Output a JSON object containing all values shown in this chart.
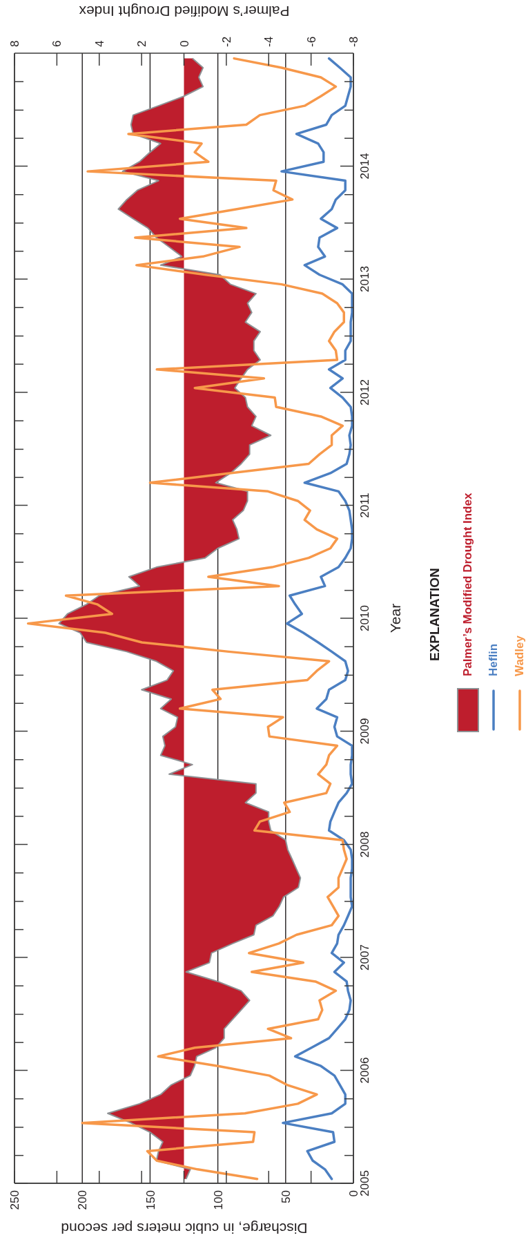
{
  "chart_data": {
    "type": "line",
    "orientation": "horizontal",
    "xlabel": "Discharge, in cubic meters per second",
    "x2label": "Palmer’s Modified Drought Index",
    "ylabel": "Year",
    "legend_title": "EXPLANATION",
    "legend": "right",
    "grid": "x",
    "x": [
      "2005-01-15",
      "2005-02-15",
      "2005-03-15",
      "2005-04-15",
      "2005-05-15",
      "2005-06-15",
      "2005-07-15",
      "2005-08-15",
      "2005-09-15",
      "2005-10-15",
      "2005-11-15",
      "2005-12-15",
      "2006-01-15",
      "2006-02-15",
      "2006-03-15",
      "2006-04-15",
      "2006-05-15",
      "2006-06-15",
      "2006-07-15",
      "2006-08-15",
      "2006-09-15",
      "2006-10-15",
      "2006-11-15",
      "2006-12-15",
      "2007-01-15",
      "2007-02-15",
      "2007-03-15",
      "2007-04-15",
      "2007-05-15",
      "2007-06-15",
      "2007-07-15",
      "2007-08-15",
      "2007-09-15",
      "2007-10-15",
      "2007-11-15",
      "2007-12-15",
      "2008-01-15",
      "2008-02-15",
      "2008-03-15",
      "2008-04-15",
      "2008-05-15",
      "2008-06-15",
      "2008-07-15",
      "2008-08-15",
      "2008-09-15",
      "2008-10-15",
      "2008-11-15",
      "2008-12-15",
      "2009-01-15",
      "2009-02-15",
      "2009-03-15",
      "2009-04-15",
      "2009-05-15",
      "2009-06-15",
      "2009-07-15",
      "2009-08-15",
      "2009-09-15",
      "2009-10-15",
      "2009-11-15",
      "2009-12-15",
      "2010-01-15",
      "2010-02-15",
      "2010-03-15",
      "2010-04-15",
      "2010-05-15",
      "2010-06-15",
      "2010-07-15",
      "2010-08-15",
      "2010-09-15",
      "2010-10-15",
      "2010-11-15",
      "2010-12-15",
      "2011-01-15",
      "2011-02-15",
      "2011-03-15",
      "2011-04-15",
      "2011-05-15",
      "2011-06-15",
      "2011-07-15",
      "2011-08-15",
      "2011-09-15",
      "2011-10-15",
      "2011-11-15",
      "2011-12-15",
      "2012-01-15",
      "2012-02-15",
      "2012-03-15",
      "2012-04-15",
      "2012-05-15",
      "2012-06-15",
      "2012-07-15",
      "2012-08-15",
      "2012-09-15",
      "2012-10-15",
      "2012-11-15",
      "2012-12-15",
      "2013-01-15",
      "2013-02-15",
      "2013-03-15",
      "2013-04-15",
      "2013-05-15",
      "2013-06-15",
      "2013-07-15",
      "2013-08-15",
      "2013-09-15",
      "2013-10-15",
      "2013-11-15",
      "2013-12-15",
      "2014-01-15",
      "2014-02-15",
      "2014-03-15",
      "2014-04-15",
      "2014-05-15",
      "2014-06-15",
      "2014-07-15",
      "2014-08-15",
      "2014-09-15",
      "2014-10-15",
      "2014-11-15",
      "2014-12-15"
    ],
    "xlim": [
      250,
      0
    ],
    "xticks": [
      250,
      200,
      150,
      100,
      50,
      0
    ],
    "x2lim": [
      8,
      -8
    ],
    "x2ticks": [
      8,
      6,
      4,
      2,
      0,
      -2,
      -4,
      -6,
      -8
    ],
    "ylim": [
      "2005",
      "2015"
    ],
    "yticks": [
      "2005",
      {
        "value": "2005-04",
        "label": null
      },
      {
        "value": "2005-07",
        "label": null
      },
      {
        "value": "2005-10",
        "label": null
      },
      "2006",
      {
        "value": "2006-04",
        "label": null
      },
      {
        "value": "2006-07",
        "label": null
      },
      {
        "value": "2006-10",
        "label": null
      },
      "2007",
      {
        "value": "2007-04",
        "label": null
      },
      {
        "value": "2007-07",
        "label": null
      },
      {
        "value": "2007-10",
        "label": null
      },
      "2008",
      {
        "value": "2008-04",
        "label": null
      },
      {
        "value": "2008-07",
        "label": null
      },
      {
        "value": "2008-10",
        "label": null
      },
      "2009",
      {
        "value": "2009-04",
        "label": null
      },
      {
        "value": "2009-07",
        "label": null
      },
      {
        "value": "2009-10",
        "label": null
      },
      "2010",
      {
        "value": "2010-04",
        "label": null
      },
      {
        "value": "2010-07",
        "label": null
      },
      {
        "value": "2010-10",
        "label": null
      },
      "2011",
      {
        "value": "2011-04",
        "label": null
      },
      {
        "value": "2011-07",
        "label": null
      },
      {
        "value": "2011-10",
        "label": null
      },
      "2012",
      {
        "value": "2012-04",
        "label": null
      },
      {
        "value": "2012-07",
        "label": null
      },
      {
        "value": "2012-10",
        "label": null
      },
      "2013",
      {
        "value": "2013-04",
        "label": null
      },
      {
        "value": "2013-07",
        "label": null
      },
      {
        "value": "2013-10",
        "label": null
      },
      "2014",
      {
        "value": "2014-04",
        "label": null
      },
      {
        "value": "2014-07",
        "label": null
      },
      {
        "value": "2014-10",
        "label": null
      }
    ],
    "series": [
      {
        "name": "Palmer’s Modified Drought Index",
        "type": "area",
        "axis": "x2",
        "color": "#be1e2d",
        "values": [
          -0.1,
          -0.3,
          1.3,
          1.2,
          1.0,
          1.6,
          2.5,
          3.6,
          2.1,
          1.1,
          0.6,
          -0.3,
          -0.5,
          -0.6,
          -1.5,
          -1.9,
          -1.9,
          -2.3,
          -2.7,
          -3.1,
          -2.7,
          -1.6,
          -0.1,
          -1.2,
          -1.3,
          -2.3,
          -3.3,
          -3.4,
          -4.2,
          -4.5,
          -4.7,
          -5.4,
          -5.5,
          -5.3,
          -5.1,
          -4.9,
          -4.8,
          -4.1,
          -4.0,
          -4.0,
          -2.9,
          -3.4,
          -3.4,
          0.7,
          -0.4,
          1.1,
          0.9,
          1.0,
          0.4,
          0.3,
          1.1,
          0.6,
          2.0,
          0.8,
          0.5,
          1.3,
          2.7,
          4.6,
          4.9,
          5.9,
          5.5,
          4.6,
          4.0,
          2.1,
          2.6,
          1.3,
          -1.0,
          -1.6,
          -2.6,
          -2.5,
          -2.3,
          -2.8,
          -3.0,
          -3.0,
          -1.5,
          -2.2,
          -2.7,
          -3.1,
          -3.1,
          -4.1,
          -3.2,
          -3.4,
          -3.0,
          -2.9,
          -2.4,
          -2.7,
          -3.0,
          -3.6,
          -3.3,
          -3.3,
          -3.6,
          -2.9,
          -3.2,
          -3.0,
          -3.4,
          -2.2,
          -1.7,
          1.1,
          0.1,
          0.7,
          1.3,
          1.7,
          2.4,
          3.1,
          2.7,
          2.2,
          1.2,
          2.9,
          2.1,
          1.6,
          1.1,
          2.4,
          2.5,
          2.4,
          1.2,
          0.0,
          -0.9,
          -0.7,
          -0.9,
          -0.4
        ]
      },
      {
        "name": "Heflin",
        "color": "#4b7fc2",
        "values": [
          16,
          21,
          30,
          34,
          14,
          15,
          52,
          16,
          6,
          6,
          10,
          14,
          24,
          43,
          31,
          18,
          12,
          6,
          3,
          2,
          4,
          5,
          14,
          7,
          16,
          12,
          11,
          7,
          4,
          1,
          2,
          2,
          2,
          1,
          1,
          2,
          7,
          18,
          17,
          14,
          11,
          5,
          1,
          2,
          2,
          1,
          1,
          12,
          14,
          12,
          27,
          20,
          18,
          6,
          4,
          6,
          16,
          26,
          37,
          49,
          38,
          43,
          47,
          21,
          24,
          11,
          6,
          2,
          1,
          1,
          2,
          3,
          6,
          11,
          36,
          17,
          5,
          3,
          2,
          3,
          1,
          1,
          2,
          8,
          17,
          8,
          18,
          6,
          6,
          2,
          2,
          2,
          1,
          1,
          1,
          8,
          25,
          36,
          21,
          26,
          25,
          12,
          24,
          16,
          13,
          6,
          6,
          53,
          22,
          22,
          26,
          42,
          20,
          16,
          6,
          4,
          2,
          2,
          10,
          18
        ]
      },
      {
        "name": "Wadley",
        "color": "#f7984a",
        "values": [
          71,
          115,
          145,
          152,
          74,
          73,
          200,
          80,
          41,
          27,
          49,
          62,
          100,
          144,
          117,
          46,
          63,
          26,
          23,
          25,
          13,
          28,
          75,
          37,
          77,
          55,
          42,
          16,
          11,
          15,
          19,
          11,
          11,
          8,
          5,
          7,
          8,
          73,
          69,
          47,
          51,
          20,
          17,
          26,
          20,
          18,
          12,
          62,
          63,
          52,
          128,
          98,
          104,
          34,
          27,
          18,
          92,
          156,
          183,
          240,
          178,
          189,
          212,
          55,
          107,
          60,
          33,
          17,
          12,
          27,
          36,
          32,
          41,
          63,
          150,
          91,
          33,
          25,
          16,
          16,
          8,
          24,
          57,
          58,
          117,
          66,
          145,
          12,
          13,
          18,
          14,
          7,
          7,
          12,
          23,
          53,
          109,
          160,
          111,
          84,
          161,
          79,
          128,
          86,
          45,
          59,
          57,
          196,
          107,
          117,
          112,
          166,
          79,
          69,
          36,
          24,
          13,
          24,
          53,
          88
        ]
      }
    ]
  }
}
